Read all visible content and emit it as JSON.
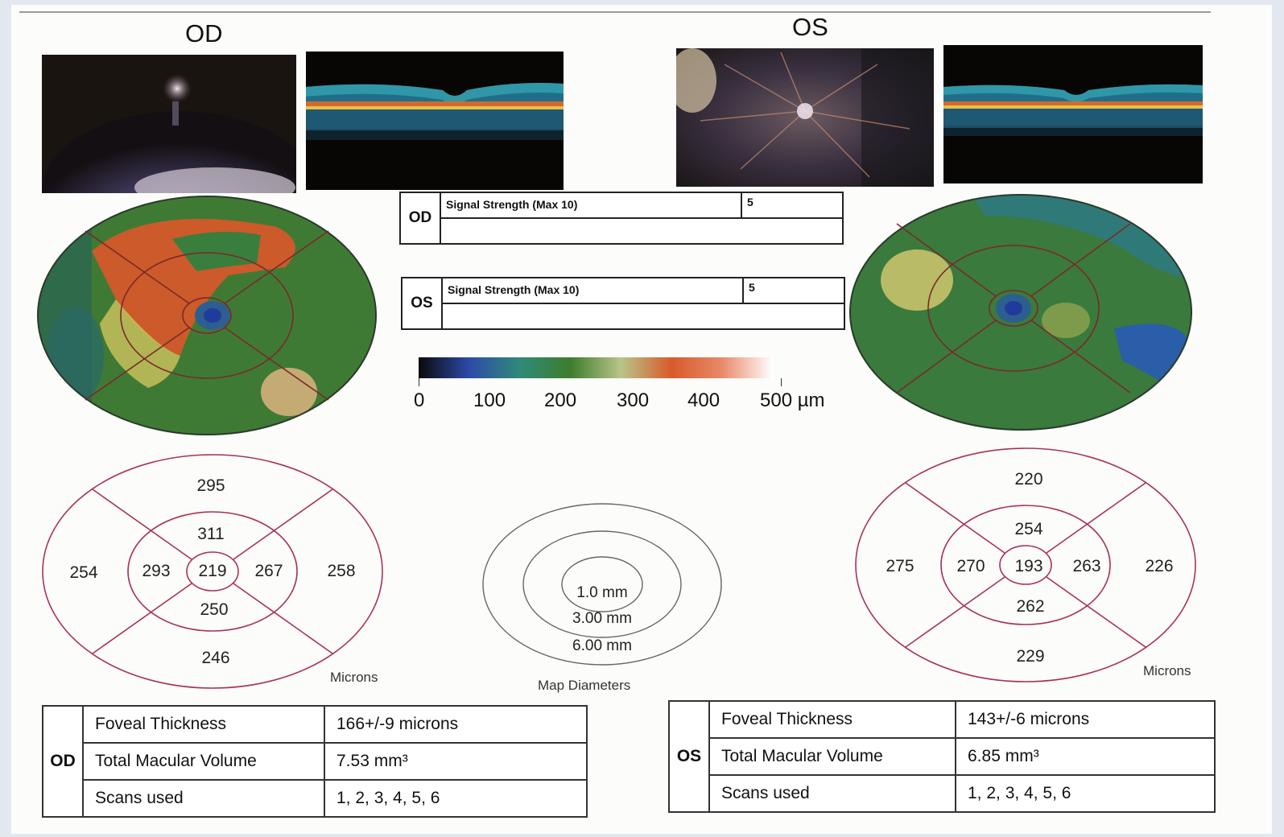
{
  "od": {
    "title": "OD",
    "signal": {
      "label": "Signal Strength (Max 10)",
      "value": "5"
    },
    "sectors": {
      "outer_sup": "295",
      "inner_sup": "311",
      "outer_temp": "254",
      "inner_temp": "293",
      "center": "219",
      "inner_nas": "267",
      "outer_nas": "258",
      "inner_inf": "250",
      "outer_inf": "246"
    },
    "microns_label": "Microns",
    "summary": {
      "eye": "OD",
      "rows": [
        {
          "label": "Foveal Thickness",
          "value": "166+/-9 microns"
        },
        {
          "label": "Total Macular Volume",
          "value": "7.53 mm³"
        },
        {
          "label": "Scans used",
          "value": "1, 2, 3, 4, 5, 6"
        }
      ]
    }
  },
  "os": {
    "title": "OS",
    "signal": {
      "label": "Signal Strength (Max 10)",
      "value": "5"
    },
    "sectors": {
      "outer_sup": "220",
      "inner_sup": "254",
      "outer_temp": "275",
      "inner_temp": "270",
      "center": "193",
      "inner_nas": "263",
      "outer_nas": "226",
      "inner_inf": "262",
      "outer_inf": "229"
    },
    "microns_label": "Microns",
    "summary": {
      "eye": "OS",
      "rows": [
        {
          "label": "Foveal Thickness",
          "value": "143+/-6 microns"
        },
        {
          "label": "Total Macular Volume",
          "value": "6.85 mm³"
        },
        {
          "label": "Scans used",
          "value": "1, 2, 3, 4, 5, 6"
        }
      ]
    }
  },
  "color_scale": {
    "labels": [
      "0",
      "100",
      "200",
      "300",
      "400",
      "500 µm"
    ],
    "colors": [
      "#0a0a0a",
      "#2d4aa8",
      "#2f8a78",
      "#3d7d2c",
      "#b9c48a",
      "#d95a2a",
      "#e98a6a",
      "#ffffff"
    ]
  },
  "map_diameters": {
    "rings": [
      "1.0 mm",
      "3.00 mm",
      "6.00 mm"
    ],
    "caption": "Map Diameters"
  }
}
